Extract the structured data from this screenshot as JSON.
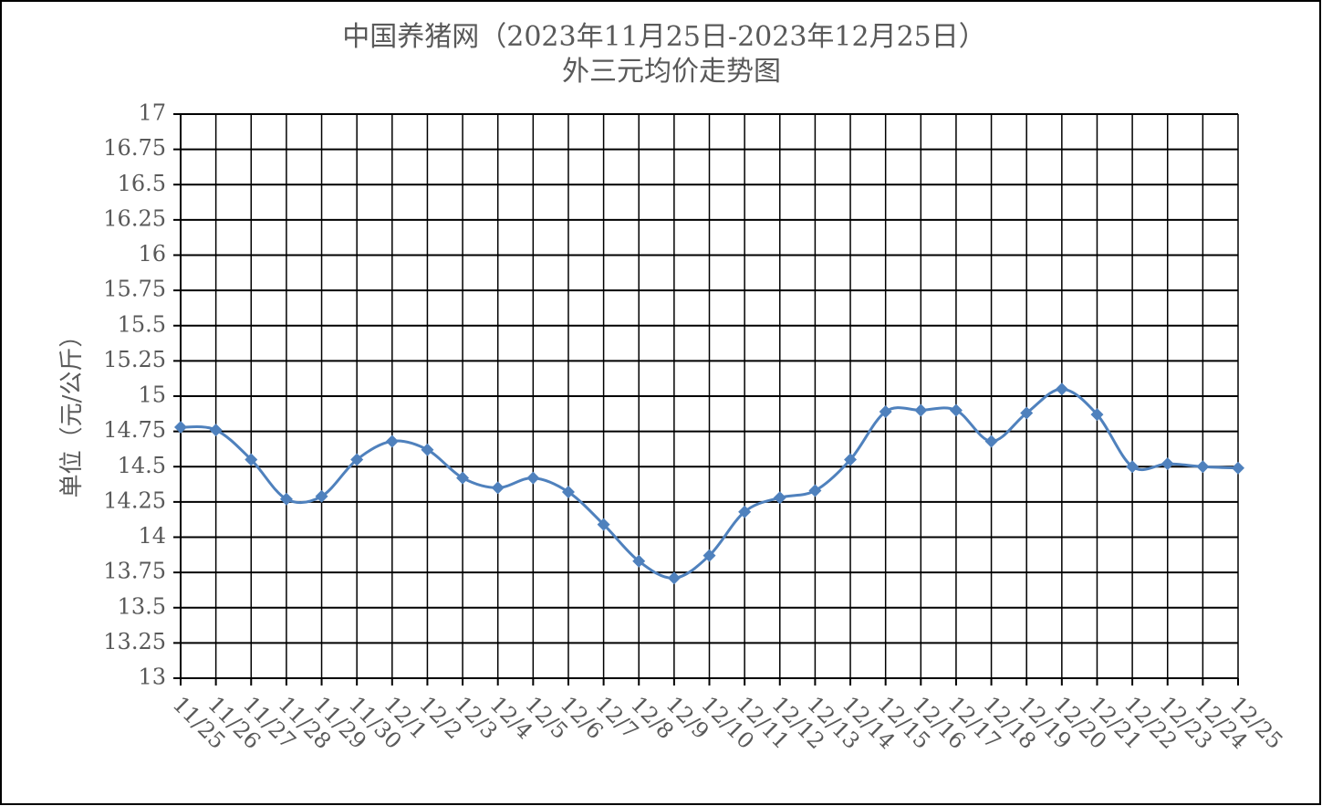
{
  "chart_data": {
    "type": "line",
    "title": "中国养猪网（2023年11月25日-2023年12月25日）",
    "subtitle": "外三元均价走势图",
    "y_label": "单位（元/公斤）",
    "categories": [
      "11/25",
      "11/26",
      "11/27",
      "11/28",
      "11/29",
      "11/30",
      "12/1",
      "12/2",
      "12/3",
      "12/4",
      "12/5",
      "12/6",
      "12/7",
      "12/8",
      "12/9",
      "12/10",
      "12/11",
      "12/12",
      "12/13",
      "12/14",
      "12/15",
      "12/16",
      "12/17",
      "12/18",
      "12/19",
      "12/20",
      "12/21",
      "12/22",
      "12/23",
      "12/24",
      "12/25"
    ],
    "series": [
      {
        "name": "外三元均价",
        "color": "#4f81bd",
        "values": [
          14.78,
          14.76,
          14.55,
          14.27,
          14.29,
          14.55,
          14.68,
          14.62,
          14.42,
          14.35,
          14.42,
          14.32,
          14.09,
          13.83,
          13.71,
          13.87,
          14.18,
          14.28,
          14.33,
          14.55,
          14.89,
          14.9,
          14.9,
          14.68,
          14.88,
          15.05,
          14.87,
          14.5,
          14.52,
          14.5,
          14.49
        ]
      }
    ],
    "ylim": [
      13,
      17
    ],
    "yticks": [
      13,
      13.25,
      13.5,
      13.75,
      14,
      14.25,
      14.5,
      14.75,
      15,
      15.25,
      15.5,
      15.75,
      16,
      16.25,
      16.5,
      16.75,
      17
    ],
    "grid": true
  }
}
